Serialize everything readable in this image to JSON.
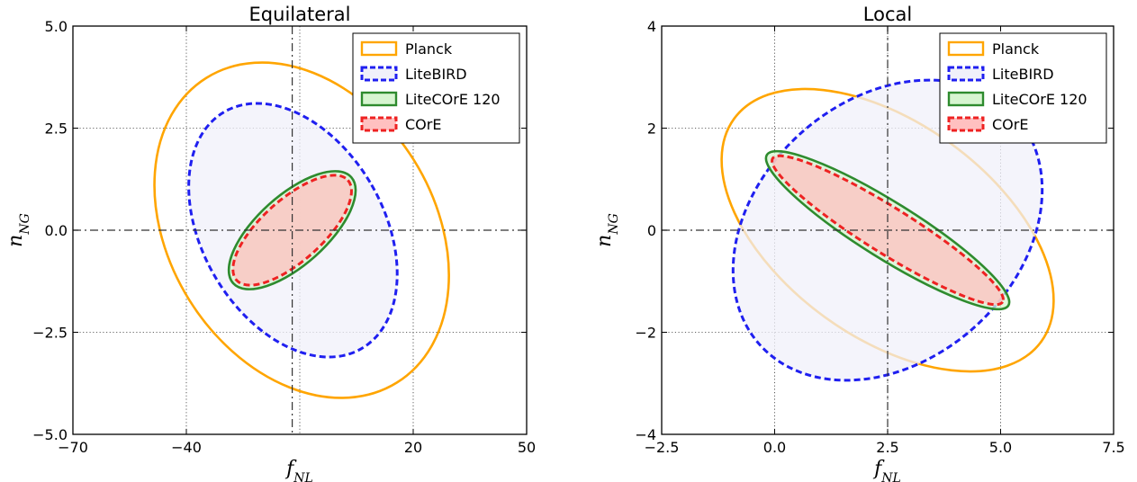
{
  "chart_data": [
    {
      "type": "scatter",
      "title": "Equilateral",
      "xlabel": "f_NL",
      "ylabel": "n_NG",
      "xlim": [
        -70,
        50
      ],
      "ylim": [
        -5.0,
        5.0
      ],
      "xticks": [
        -70,
        -40,
        20,
        50
      ],
      "xtick_labels": [
        "−70",
        "−40",
        "20",
        "50"
      ],
      "xgrid": [
        -40,
        -10,
        20
      ],
      "yticks": [
        -5.0,
        -2.5,
        0.0,
        2.5,
        5.0
      ],
      "ytick_labels": [
        "−5.0",
        "−2.5",
        "0.0",
        "2.5",
        "5.0"
      ],
      "fiducial": {
        "x": -12,
        "y": 0
      },
      "grid": true,
      "legend_position": "top-right",
      "series": [
        {
          "name": "Planck",
          "color": "#FFA500",
          "linestyle": "solid",
          "fill": "none",
          "ellipse": {
            "center": [
              -9.5,
              0.0
            ],
            "half_width": 35,
            "half_height": 4.4,
            "rotation_deg": 32
          }
        },
        {
          "name": "LiteBIRD",
          "color": "#1F1FF0",
          "linestyle": "dashed",
          "fill": "#F0F0FA",
          "ellipse": {
            "center": [
              -11.8,
              0.0
            ],
            "half_width": 24,
            "half_height": 3.35,
            "rotation_deg": 30
          }
        },
        {
          "name": "LiteCOrE 120",
          "color": "#2E8B2E",
          "linestyle": "solid",
          "fill": "#D7F5D0",
          "ellipse": {
            "center": [
              -12.0,
              0.0
            ],
            "half_width": 21,
            "half_height": 0.85,
            "rotation_deg": 42
          }
        },
        {
          "name": "COrE",
          "color": "#EE2222",
          "linestyle": "dashed",
          "fill": "#FFC0C0",
          "ellipse": {
            "center": [
              -12.0,
              0.0
            ],
            "half_width": 19.8,
            "half_height": 0.75,
            "rotation_deg": 42
          }
        }
      ]
    },
    {
      "type": "scatter",
      "title": "Local",
      "xlabel": "f_NL",
      "ylabel": "n_NG",
      "xlim": [
        -2.5,
        7.5
      ],
      "ylim": [
        -4,
        4
      ],
      "xticks": [
        -2.5,
        0.0,
        2.5,
        5.0,
        7.5
      ],
      "xtick_labels": [
        "−2.5",
        "0.0",
        "2.5",
        "5.0",
        "7.5"
      ],
      "xgrid": [
        0.0,
        2.5,
        5.0
      ],
      "yticks": [
        -4,
        -2,
        0,
        2,
        4
      ],
      "ytick_labels": [
        "−4",
        "−2",
        "0",
        "2",
        "4"
      ],
      "fiducial": {
        "x": 2.5,
        "y": 0
      },
      "grid": true,
      "legend_position": "top-right",
      "series": [
        {
          "name": "Planck",
          "color": "#FFA500",
          "linestyle": "solid",
          "fill": "none",
          "ellipse": {
            "center": [
              2.5,
              0.0
            ],
            "half_width": 4.2,
            "half_height": 2.1,
            "rotation_deg": -36
          }
        },
        {
          "name": "LiteBIRD",
          "color": "#1F1FF0",
          "linestyle": "dashed",
          "fill": "#F0F0FA",
          "ellipse": {
            "center": [
              2.5,
              0.0
            ],
            "half_width": 3.8,
            "half_height": 2.55,
            "rotation_deg": 42
          }
        },
        {
          "name": "LiteCOrE 120",
          "color": "#2E8B2E",
          "linestyle": "solid",
          "fill": "#D7F5D0",
          "ellipse": {
            "center": [
              2.5,
              0.0
            ],
            "half_width": 3.15,
            "half_height": 0.55,
            "rotation_deg": -32
          }
        },
        {
          "name": "COrE",
          "color": "#EE2222",
          "linestyle": "dashed",
          "fill": "#FFC0C0",
          "ellipse": {
            "center": [
              2.5,
              0.0
            ],
            "half_width": 3.0,
            "half_height": 0.45,
            "rotation_deg": -32
          }
        }
      ]
    }
  ]
}
